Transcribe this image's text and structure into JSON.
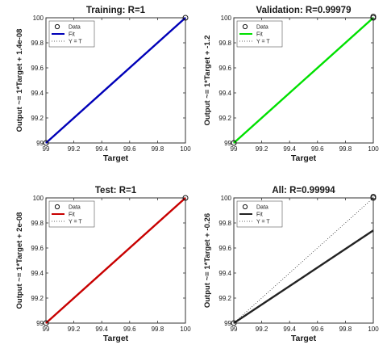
{
  "chart_data": [
    {
      "type": "scatter",
      "title": "Training: R=1",
      "xlabel": "Target",
      "ylabel": "Output ~= 1*Target + 1.4e-08",
      "xlim": [
        99,
        100
      ],
      "ylim": [
        99,
        100
      ],
      "x_ticks": [
        "99",
        "99.2",
        "99.4",
        "99.6",
        "99.8",
        "100"
      ],
      "y_ticks": [
        "99",
        "99.2",
        "99.4",
        "99.6",
        "99.8",
        "100"
      ],
      "legend": [
        "Data",
        "Fit",
        "Y = T"
      ],
      "legend_position": "top-left",
      "fit_color": "#0000b8",
      "fit": {
        "slope": 1,
        "intercept": 1.4e-08
      },
      "points": [
        {
          "x": 99,
          "y": 99
        },
        {
          "x": 100,
          "y": 100
        }
      ]
    },
    {
      "type": "scatter",
      "title": "Validation: R=0.99979",
      "xlabel": "Target",
      "ylabel": "Output ~= 1*Target + -1.2",
      "xlim": [
        99,
        100
      ],
      "ylim": [
        99,
        100
      ],
      "x_ticks": [
        "99",
        "99.2",
        "99.4",
        "99.6",
        "99.8",
        "100"
      ],
      "y_ticks": [
        "99",
        "99.2",
        "99.4",
        "99.6",
        "99.8",
        "100"
      ],
      "legend": [
        "Data",
        "Fit",
        "Y = T"
      ],
      "legend_position": "top-left",
      "fit_color": "#00e000",
      "fit": {
        "slope": 1,
        "intercept": -1.2
      },
      "points": [
        {
          "x": 99,
          "y": 99
        },
        {
          "x": 100,
          "y": 100
        },
        {
          "x": 100,
          "y": 100.01
        }
      ]
    },
    {
      "type": "scatter",
      "title": "Test: R=1",
      "xlabel": "Target",
      "ylabel": "Output ~= 1*Target + 2e-08",
      "xlim": [
        99,
        100
      ],
      "ylim": [
        99,
        100
      ],
      "x_ticks": [
        "99",
        "99.2",
        "99.4",
        "99.6",
        "99.8",
        "100"
      ],
      "y_ticks": [
        "99",
        "99.2",
        "99.4",
        "99.6",
        "99.8",
        "100"
      ],
      "legend": [
        "Data",
        "Fit",
        "Y = T"
      ],
      "legend_position": "top-left",
      "fit_color": "#c80000",
      "fit": {
        "slope": 1,
        "intercept": 2e-08
      },
      "points": [
        {
          "x": 99,
          "y": 99
        },
        {
          "x": 100,
          "y": 100
        }
      ]
    },
    {
      "type": "scatter",
      "title": "All: R=0.99994",
      "xlabel": "Target",
      "ylabel": "Output ~= 1*Target + -0.26",
      "xlim": [
        99,
        100
      ],
      "ylim": [
        99,
        100
      ],
      "x_ticks": [
        "99",
        "99.2",
        "99.4",
        "99.6",
        "99.8",
        "100"
      ],
      "y_ticks": [
        "99",
        "99.2",
        "99.4",
        "99.6",
        "99.8",
        "100"
      ],
      "legend": [
        "Data",
        "Fit",
        "Y = T"
      ],
      "legend_position": "top-left",
      "fit_color": "#222222",
      "fit": {
        "slope": 1,
        "intercept": -0.26
      },
      "points": [
        {
          "x": 99,
          "y": 99
        },
        {
          "x": 100,
          "y": 100
        },
        {
          "x": 100,
          "y": 100.01
        }
      ]
    }
  ]
}
